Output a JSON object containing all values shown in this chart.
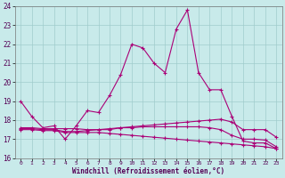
{
  "xlabel": "Windchill (Refroidissement éolien,°C)",
  "bg_color": "#c8eaea",
  "grid_color": "#a0cccc",
  "line_color": "#aa0077",
  "xlim": [
    -0.5,
    23.5
  ],
  "ylim": [
    16,
    24
  ],
  "xticks": [
    0,
    1,
    2,
    3,
    4,
    5,
    6,
    7,
    8,
    9,
    10,
    11,
    12,
    13,
    14,
    15,
    16,
    17,
    18,
    19,
    20,
    21,
    22,
    23
  ],
  "yticks": [
    16,
    17,
    18,
    19,
    20,
    21,
    22,
    23,
    24
  ],
  "series1_y": [
    19.0,
    18.2,
    17.6,
    17.7,
    17.0,
    17.7,
    18.5,
    18.4,
    19.3,
    20.4,
    22.0,
    21.8,
    21.0,
    20.5,
    22.8,
    23.8,
    20.5,
    19.6,
    19.6,
    18.2,
    16.9,
    16.8,
    16.8,
    16.5
  ],
  "series2_y": [
    17.6,
    17.6,
    17.55,
    17.55,
    17.55,
    17.55,
    17.5,
    17.5,
    17.5,
    17.6,
    17.65,
    17.7,
    17.75,
    17.8,
    17.85,
    17.9,
    17.95,
    18.0,
    18.05,
    17.9,
    17.5,
    17.5,
    17.5,
    17.1
  ],
  "series3_y": [
    17.55,
    17.55,
    17.5,
    17.5,
    17.4,
    17.4,
    17.45,
    17.5,
    17.55,
    17.6,
    17.6,
    17.65,
    17.65,
    17.65,
    17.65,
    17.65,
    17.65,
    17.6,
    17.5,
    17.2,
    17.0,
    17.0,
    16.95,
    16.6
  ],
  "series4_y": [
    17.5,
    17.5,
    17.45,
    17.45,
    17.35,
    17.35,
    17.35,
    17.35,
    17.3,
    17.25,
    17.2,
    17.15,
    17.1,
    17.05,
    17.0,
    16.95,
    16.9,
    16.85,
    16.8,
    16.75,
    16.7,
    16.65,
    16.6,
    16.5
  ]
}
